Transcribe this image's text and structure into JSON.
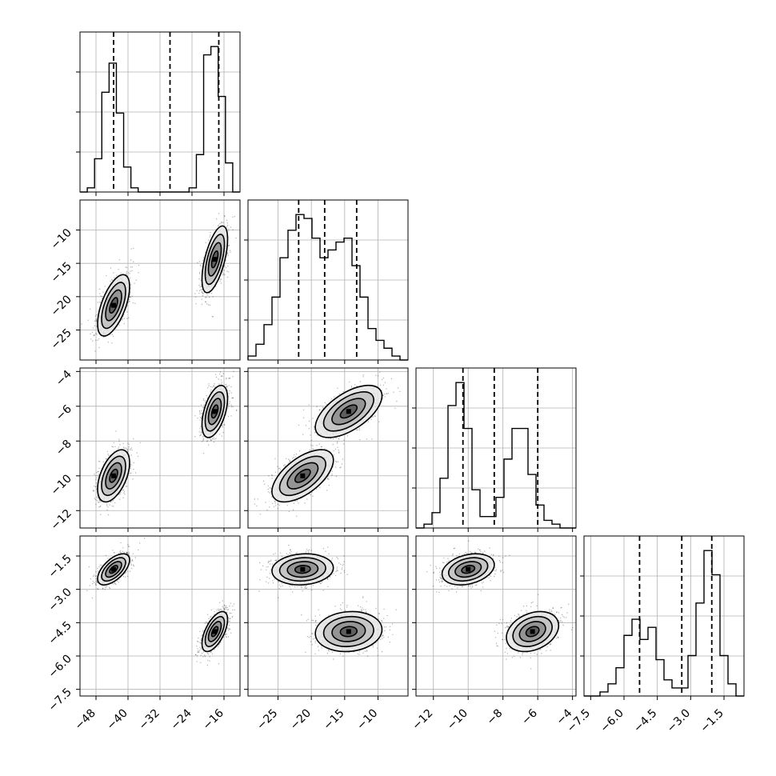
{
  "chart_data": {
    "type": "corner",
    "grid": true,
    "parameters": [
      {
        "range": [
          -52,
          -12
        ],
        "ticks": [
          -48,
          -40,
          -32,
          -24,
          -16
        ],
        "tick_labels": [
          "−48",
          "−40",
          "−32",
          "−24",
          "−16"
        ],
        "quantiles": [
          -43.6,
          -29.5,
          -17.3
        ]
      },
      {
        "range": [
          -29.5,
          -5.5
        ],
        "ticks": [
          -10,
          -15,
          -20,
          -25
        ],
        "tick_labels": [
          "−10",
          "−15",
          "−20",
          "−25"
        ],
        "ticks_x": [
          -25,
          -20,
          -15,
          -10
        ],
        "tick_labels_x": [
          "−25",
          "−20",
          "−15",
          "−10"
        ],
        "quantiles": [
          -21.9,
          -18.0,
          -13.2
        ]
      },
      {
        "range": [
          -13,
          -3.8
        ],
        "ticks": [
          -4,
          -6,
          -8,
          -10,
          -12
        ],
        "tick_labels": [
          "−4",
          "−6",
          "−8",
          "−10",
          "−12"
        ],
        "ticks_x": [
          -12,
          -10,
          -8,
          -6,
          -4
        ],
        "tick_labels_x": [
          "−12",
          "−10",
          "−8",
          "−6",
          "−4"
        ],
        "quantiles": [
          -10.3,
          -8.5,
          -6.0
        ]
      },
      {
        "range": [
          -7.8,
          -0.6
        ],
        "ticks": [
          -1.5,
          -3.0,
          -4.5,
          -6.0,
          -7.5
        ],
        "tick_labels": [
          "−1.5",
          "−3.0",
          "−4.5",
          "−6.0",
          "−7.5"
        ],
        "ticks_x": [
          -7.5,
          -6.0,
          -4.5,
          -3.0,
          -1.5
        ],
        "tick_labels_x": [
          "−7.5",
          "−6.0",
          "−4.5",
          "−3.0",
          "−1.5"
        ],
        "quantiles": [
          -5.3,
          -3.4,
          -2.05
        ]
      }
    ],
    "histograms": [
      {
        "counts": [
          0,
          1,
          8,
          24,
          31,
          19,
          6,
          1,
          0,
          0,
          0,
          0,
          0,
          0,
          0,
          1,
          9,
          33,
          35,
          23,
          7,
          0
        ]
      },
      {
        "counts": [
          1,
          4,
          9,
          16,
          26,
          33,
          37,
          36,
          31,
          26,
          28,
          30,
          31,
          24,
          16,
          8,
          5,
          3,
          1,
          0
        ]
      },
      {
        "counts": [
          0,
          1,
          4,
          13,
          32,
          38,
          26,
          10,
          3,
          3,
          8,
          18,
          26,
          26,
          14,
          6,
          2,
          1,
          0,
          0
        ]
      },
      {
        "counts": [
          0,
          0,
          1,
          3,
          7,
          15,
          19,
          14,
          17,
          9,
          4,
          2,
          2,
          10,
          23,
          36,
          30,
          10,
          3,
          0
        ]
      }
    ],
    "modes": [
      {
        "center": [
          -43.6,
          -21.3,
          -10.0,
          -2.1
        ],
        "sd": [
          2.0,
          2.3,
          0.75,
          0.35
        ],
        "weight": 0.5
      },
      {
        "center": [
          -18.3,
          -14.4,
          -6.3,
          -4.9
        ],
        "sd": [
          1.6,
          2.5,
          0.75,
          0.45
        ],
        "weight": 0.5
      }
    ],
    "pair_correlations": {
      "1-0": 0.6,
      "2-0": 0.5,
      "2-1": 0.6,
      "3-0": 0.6,
      "3-1": 0.1,
      "3-2": 0.3
    }
  }
}
